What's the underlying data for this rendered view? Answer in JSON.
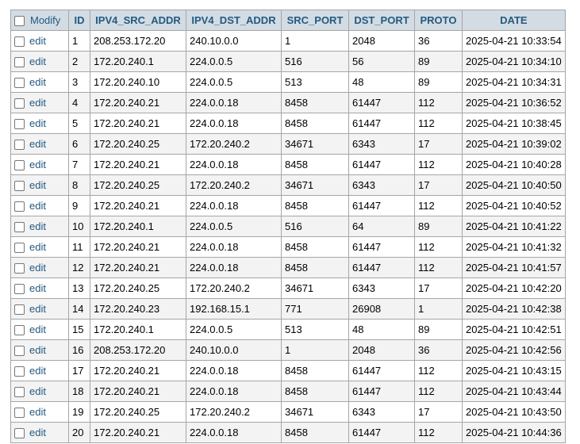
{
  "header": {
    "modify": "Modify",
    "columns": [
      "ID",
      "IPV4_SRC_ADDR",
      "IPV4_DST_ADDR",
      "SRC_PORT",
      "DST_PORT",
      "PROTO",
      "DATE"
    ]
  },
  "edit_label": "edit",
  "rows": [
    [
      "1",
      "208.253.172.20",
      "240.10.0.0",
      "1",
      "2048",
      "36",
      "2025-04-21 10:33:54"
    ],
    [
      "2",
      "172.20.240.1",
      "224.0.0.5",
      "516",
      "56",
      "89",
      "2025-04-21 10:34:10"
    ],
    [
      "3",
      "172.20.240.10",
      "224.0.0.5",
      "513",
      "48",
      "89",
      "2025-04-21 10:34:31"
    ],
    [
      "4",
      "172.20.240.21",
      "224.0.0.18",
      "8458",
      "61447",
      "112",
      "2025-04-21 10:36:52"
    ],
    [
      "5",
      "172.20.240.21",
      "224.0.0.18",
      "8458",
      "61447",
      "112",
      "2025-04-21 10:38:45"
    ],
    [
      "6",
      "172.20.240.25",
      "172.20.240.2",
      "34671",
      "6343",
      "17",
      "2025-04-21 10:39:02"
    ],
    [
      "7",
      "172.20.240.21",
      "224.0.0.18",
      "8458",
      "61447",
      "112",
      "2025-04-21 10:40:28"
    ],
    [
      "8",
      "172.20.240.25",
      "172.20.240.2",
      "34671",
      "6343",
      "17",
      "2025-04-21 10:40:50"
    ],
    [
      "9",
      "172.20.240.21",
      "224.0.0.18",
      "8458",
      "61447",
      "112",
      "2025-04-21 10:40:52"
    ],
    [
      "10",
      "172.20.240.1",
      "224.0.0.5",
      "516",
      "64",
      "89",
      "2025-04-21 10:41:22"
    ],
    [
      "11",
      "172.20.240.21",
      "224.0.0.18",
      "8458",
      "61447",
      "112",
      "2025-04-21 10:41:32"
    ],
    [
      "12",
      "172.20.240.21",
      "224.0.0.18",
      "8458",
      "61447",
      "112",
      "2025-04-21 10:41:57"
    ],
    [
      "13",
      "172.20.240.25",
      "172.20.240.2",
      "34671",
      "6343",
      "17",
      "2025-04-21 10:42:20"
    ],
    [
      "14",
      "172.20.240.23",
      "192.168.15.1",
      "771",
      "26908",
      "1",
      "2025-04-21 10:42:38"
    ],
    [
      "15",
      "172.20.240.1",
      "224.0.0.5",
      "513",
      "48",
      "89",
      "2025-04-21 10:42:51"
    ],
    [
      "16",
      "208.253.172.20",
      "240.10.0.0",
      "1",
      "2048",
      "36",
      "2025-04-21 10:42:56"
    ],
    [
      "17",
      "172.20.240.21",
      "224.0.0.18",
      "8458",
      "61447",
      "112",
      "2025-04-21 10:43:15"
    ],
    [
      "18",
      "172.20.240.21",
      "224.0.0.18",
      "8458",
      "61447",
      "112",
      "2025-04-21 10:43:44"
    ],
    [
      "19",
      "172.20.240.25",
      "172.20.240.2",
      "34671",
      "6343",
      "17",
      "2025-04-21 10:43:50"
    ],
    [
      "20",
      "172.20.240.21",
      "224.0.0.18",
      "8458",
      "61447",
      "112",
      "2025-04-21 10:44:36"
    ]
  ]
}
